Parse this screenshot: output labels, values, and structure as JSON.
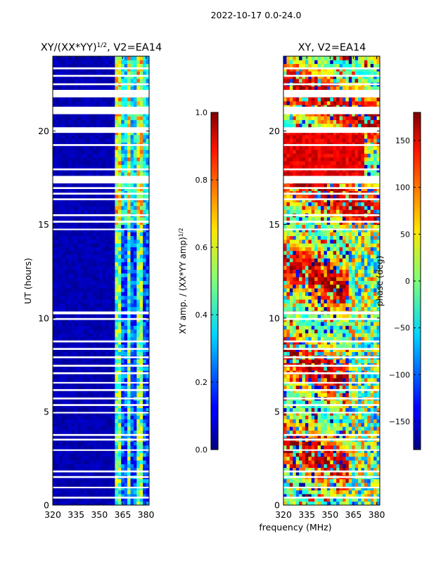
{
  "figure": {
    "suptitle": "2022-10-17 0.0-24.0"
  },
  "chart_data": [
    {
      "type": "heatmap",
      "title_text": "XY/(XX*YY)",
      "title_exponent": "1/2",
      "title_suffix": ", V2=EA14",
      "xlabel": "",
      "ylabel": "UT (hours)",
      "xlim": [
        320,
        382
      ],
      "ylim": [
        0,
        24
      ],
      "xticks": [
        320,
        335,
        350,
        365,
        380
      ],
      "yticks": [
        0,
        5,
        10,
        15,
        20
      ],
      "quantity": "normalized XY amplitude",
      "colorbar": {
        "label_text": "XY amp. / (XX*YY amp)",
        "label_exponent": "1/2",
        "range": [
          0.0,
          1.0
        ],
        "ticks": [
          "0.0",
          "0.2",
          "0.4",
          "0.6",
          "0.8",
          "1.0"
        ],
        "tick_values": [
          0.0,
          0.2,
          0.4,
          0.6,
          0.8,
          1.0
        ]
      }
    },
    {
      "type": "heatmap",
      "title_text": "XY, V2=EA14",
      "xlabel": "frequency (MHz)",
      "ylabel": "",
      "xlim": [
        320,
        382
      ],
      "ylim": [
        0,
        24
      ],
      "xticks": [
        320,
        335,
        350,
        365,
        380
      ],
      "yticks": [
        0,
        5,
        10,
        15,
        20
      ],
      "quantity": "XY phase",
      "colorbar": {
        "label_text": "phase (deg)",
        "range": [
          -180,
          180
        ],
        "ticks": [
          "150",
          "100",
          "50",
          "0",
          "−50",
          "−100",
          "−150"
        ],
        "tick_values": [
          150,
          100,
          50,
          0,
          -50,
          -100,
          -150
        ]
      }
    }
  ],
  "flagged_hour_bands": [
    [
      0.35,
      0.45
    ],
    [
      0.9,
      0.98
    ],
    [
      1.45,
      1.55
    ],
    [
      1.75,
      1.85
    ],
    [
      2.9,
      2.98
    ],
    [
      3.45,
      3.55
    ],
    [
      3.7,
      3.8
    ],
    [
      4.9,
      4.98
    ],
    [
      5.3,
      5.4
    ],
    [
      5.65,
      5.75
    ],
    [
      6.1,
      6.2
    ],
    [
      6.5,
      6.58
    ],
    [
      7.0,
      7.1
    ],
    [
      7.4,
      7.5
    ],
    [
      7.85,
      7.95
    ],
    [
      8.3,
      8.4
    ],
    [
      8.7,
      8.8
    ],
    [
      9.9,
      10.0
    ],
    [
      10.2,
      10.35
    ],
    [
      14.7,
      14.78
    ],
    [
      15.1,
      15.2
    ],
    [
      15.45,
      15.55
    ],
    [
      16.3,
      16.4
    ],
    [
      16.6,
      16.7
    ],
    [
      16.9,
      17.0
    ],
    [
      17.2,
      17.6
    ],
    [
      17.9,
      18.0
    ],
    [
      19.2,
      19.3
    ],
    [
      19.9,
      20.2
    ],
    [
      20.9,
      21.3
    ],
    [
      21.8,
      22.2
    ],
    [
      22.45,
      22.55
    ],
    [
      22.9,
      23.0
    ],
    [
      23.3,
      23.4
    ]
  ]
}
